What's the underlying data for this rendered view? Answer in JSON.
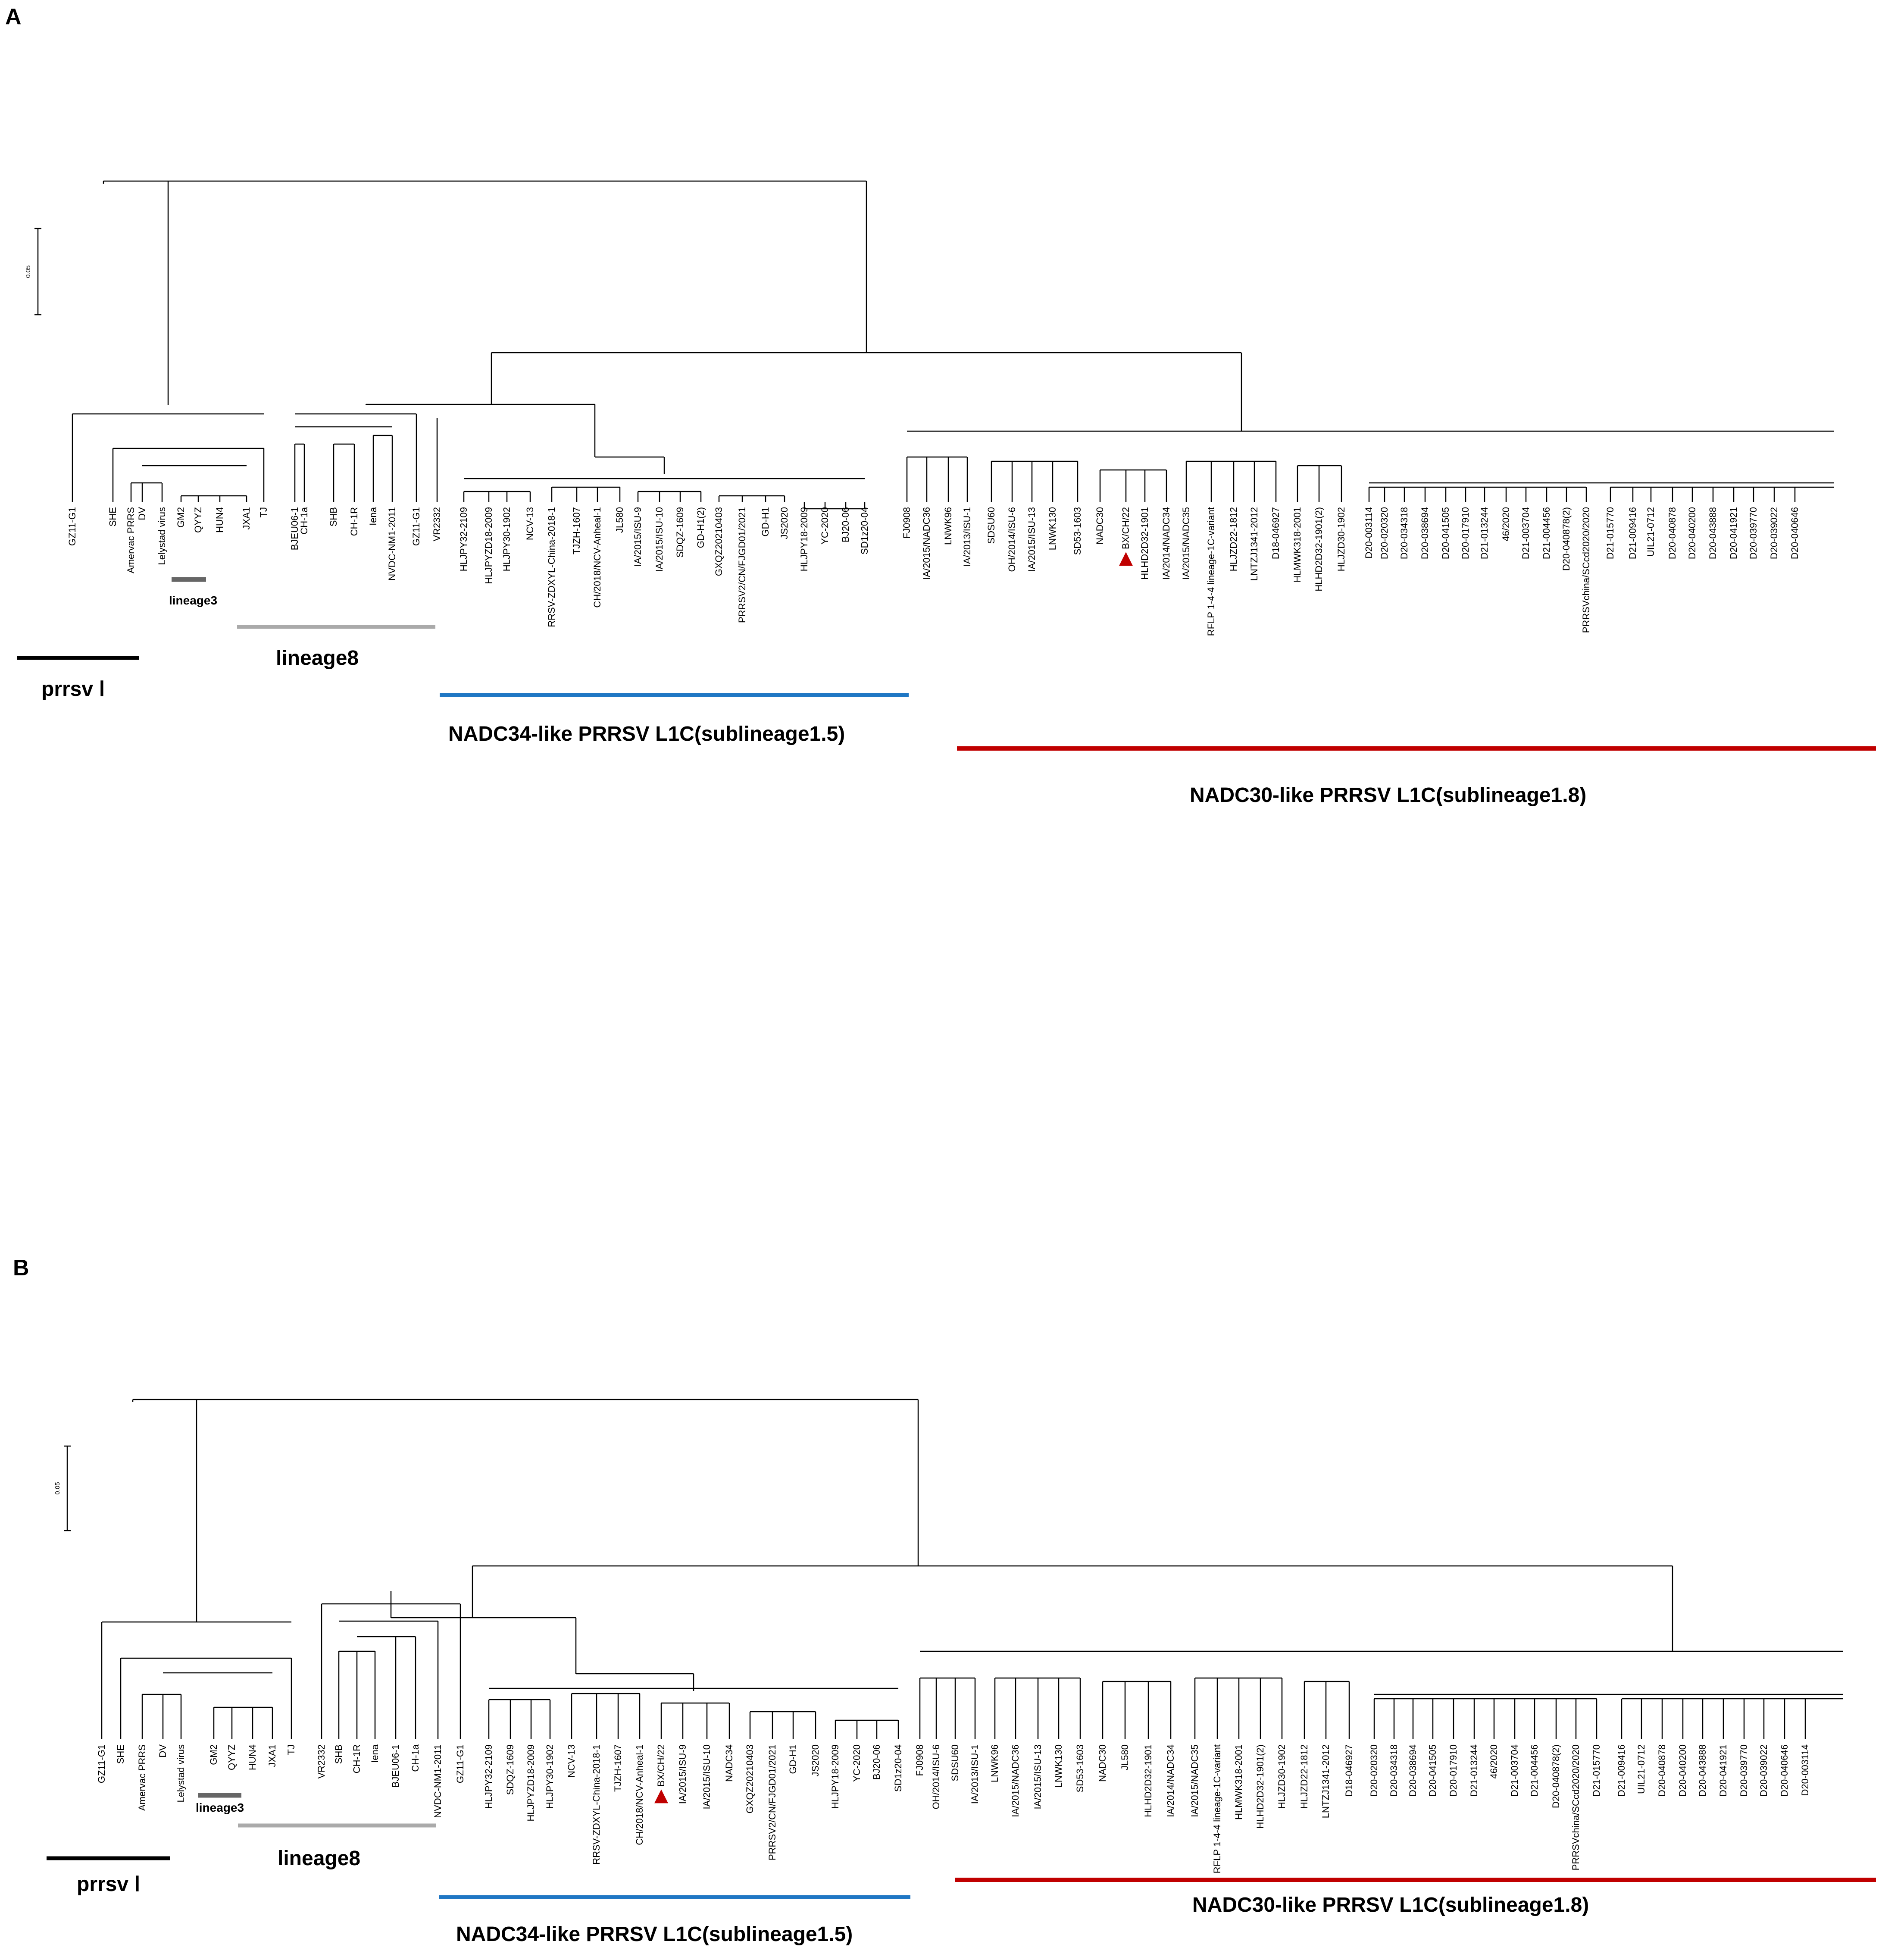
{
  "figure": {
    "panels": [
      {
        "id": "A",
        "letter": "A",
        "scale_label": "0.05",
        "clades": {
          "prrsv1": "prrsv Ⅰ",
          "lineage3": "lineage3",
          "lineage8": "lineage8",
          "nadc34": "NADC34-like PRRSV L1C(sublineage1.5)",
          "nadc30": "NADC30-like PRRSV L1C(sublineage1.8)"
        },
        "leaves": [
          "GZ11-G1",
          "SHE",
          "Amervac PRRS",
          "DV",
          "Lelystad virus",
          "GM2",
          "QYYZ",
          "HUN4",
          "JXA1",
          "TJ",
          "BJEU06-1",
          "CH-1a",
          "SHB",
          "CH-1R",
          "Iena",
          "NVDC-NM1-2011",
          "GZ11-G1",
          "VR2332",
          "HLJPY32-2109",
          "HLJPYZD18-2009",
          "HLJPY30-1902",
          "NCV-13",
          "RRSV-ZDXYL-China-2018-1",
          "TJZH-1607",
          "CH/2018/NCV-Anheal-1",
          "JL580",
          "IA/2015/ISU-9",
          "IA/2015/ISU-10",
          "SDQZ-1609",
          "GD-H1(2)",
          "GXQZ20210403",
          "PRRSV2/CN/FJGD01/2021",
          "GD-H1",
          "JS2020",
          "HLJPY18-2009",
          "YC-2020",
          "BJ20-06",
          "SD1z20-04",
          "FJ0908",
          "IA/2015/NADC36",
          "LNWK96",
          "IA/2013/ISU-1",
          "SDSU60",
          "OH/2014/ISU-6",
          "IA/2015/ISU-13",
          "LNWK130",
          "SD53-1603",
          "NADC30",
          "BX/CH/22",
          "HLHD2D32-1901",
          "IA/2014/NADC34",
          "IA/2015/NADC35",
          "RFLP 1-4-4 lineage-1C-variant",
          "HLJZD22-1812",
          "LNTZJ1341-2012",
          "D18-046927",
          "HLMWK318-2001",
          "HLHD2D32-1901(2)",
          "HLJZD30-1902",
          "D20-003114",
          "D20-020320",
          "D20-034318",
          "D20-038694",
          "D20-041505",
          "D20-017910",
          "D21-013244",
          "46/2020",
          "D21-003704",
          "D21-004456",
          "D20-040878(2)",
          "PRRSVchina/SCcd2020/2020",
          "D21-015770",
          "D21-009416",
          "UIL21-0712",
          "D20-040878",
          "D20-040200",
          "D20-043888",
          "D20-041921",
          "D20-039770",
          "D20-039022",
          "D20-040646"
        ]
      },
      {
        "id": "B",
        "letter": "B",
        "scale_label": "0.05",
        "clades": {
          "prrsv1": "prrsv Ⅰ",
          "lineage3": "lineage3",
          "lineage8": "lineage8",
          "nadc34": "NADC34-like PRRSV L1C(sublineage1.5)",
          "nadc30": "NADC30-like PRRSV L1C(sublineage1.8)"
        },
        "leaves": [
          "GZ11-G1",
          "SHE",
          "Amervac PRRS",
          "DV",
          "Lelystad virus",
          "GM2",
          "QYYZ",
          "HUN4",
          "JXA1",
          "TJ",
          "VR2332",
          "SHB",
          "CH-1R",
          "Iena",
          "BJEU06-1",
          "CH-1a",
          "NVDC-NM1-2011",
          "GZ11-G1",
          "HLJPY32-2109",
          "SDQZ-1609",
          "HLJPYZD18-2009",
          "HLJPY30-1902",
          "NCV-13",
          "RRSV-ZDXYL-China-2018-1",
          "TJZH-1607",
          "CH/2018/NCV-Anheal-1",
          "BX/CH/22",
          "IA/2015/ISU-9",
          "IA/2015/ISU-10",
          "NADC34",
          "GXQZ20210403",
          "PRRSV2/CN/FJGD01/2021",
          "GD-H1",
          "JS2020",
          "HLJPY18-2009",
          "YC-2020",
          "BJ20-06",
          "SD1z20-04",
          "FJ0908",
          "OH/2014/ISU-6",
          "SDSU60",
          "IA/2013/ISU-1",
          "LNWK96",
          "IA/2015/NADC36",
          "IA/2015/ISU-13",
          "LNWK130",
          "SD53-1603",
          "NADC30",
          "JL580",
          "HLHD2D32-1901",
          "IA/2014/NADC34",
          "IA/2015/NADC35",
          "RFLP 1-4-4 lineage-1C-variant",
          "HLMWK318-2001",
          "HLHD2D32-1901(2)",
          "HLJZD30-1902",
          "HLJZD22-1812",
          "LNTZJ1341-2012",
          "D18-046927",
          "D20-020320",
          "D20-034318",
          "D20-038694",
          "D20-041505",
          "D20-017910",
          "D21-013244",
          "46/2020",
          "D21-003704",
          "D21-004456",
          "D20-040878(2)",
          "PRRSVchina/SCcd2020/2020",
          "D21-015770",
          "D21-009416",
          "UIL21-0712",
          "D20-040878",
          "D20-040200",
          "D20-043888",
          "D20-041921",
          "D20-039770",
          "D20-039022",
          "D20-040646",
          "D20-003114"
        ]
      }
    ],
    "colors": {
      "prrsv1_bar": "#000000",
      "lineage3_bar": "#666666",
      "lineage8_bar": "#aaaaaa",
      "nadc34_bar": "#1f77c4",
      "nadc30_bar": "#c00000",
      "marker": "#c00000"
    }
  }
}
